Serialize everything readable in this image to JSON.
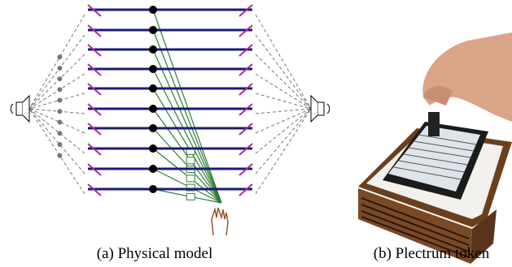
{
  "figure": {
    "subfigures": [
      {
        "caption": "(a) Physical model"
      },
      {
        "caption": "(b) Plectrum token"
      }
    ]
  }
}
